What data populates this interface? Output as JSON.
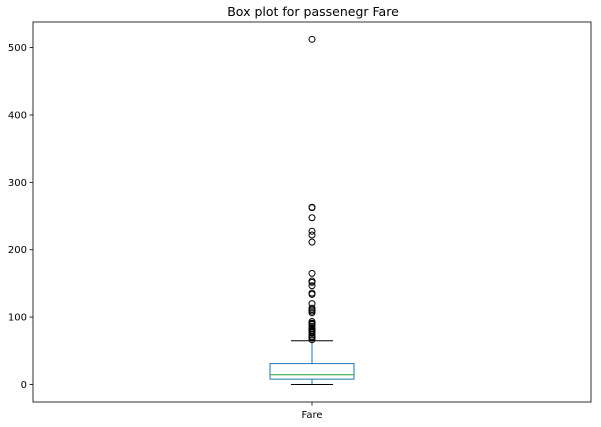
{
  "chart_data": {
    "type": "box",
    "title": "Box plot for passenegr Fare",
    "categories": [
      "Fare"
    ],
    "xlabel": "",
    "ylabel": "",
    "ylim": [
      -26,
      538
    ],
    "yticks": [
      0,
      100,
      200,
      300,
      400,
      500
    ],
    "grid": false,
    "colors": {
      "box": "#1f77b4",
      "median": "#2ca02c",
      "whisker": "#1f77b4",
      "cap": "#000000",
      "flier": "#000000"
    },
    "boxes": [
      {
        "name": "Fare",
        "whisker_low": 0,
        "q1": 7.9,
        "median": 14.5,
        "q3": 31.0,
        "whisker_high": 65.0,
        "fliers": [
          66.6,
          69.5,
          71.0,
          73.5,
          76.7,
          77.3,
          78.9,
          79.2,
          80.0,
          82.2,
          83.2,
          86.5,
          89.1,
          90.0,
          91.1,
          93.5,
          106.4,
          108.9,
          110.9,
          113.3,
          120.0,
          133.7,
          135.6,
          146.5,
          151.6,
          153.5,
          164.9,
          211.3,
          221.8,
          227.5,
          247.5,
          262.4,
          263.0,
          512.3
        ]
      }
    ]
  }
}
